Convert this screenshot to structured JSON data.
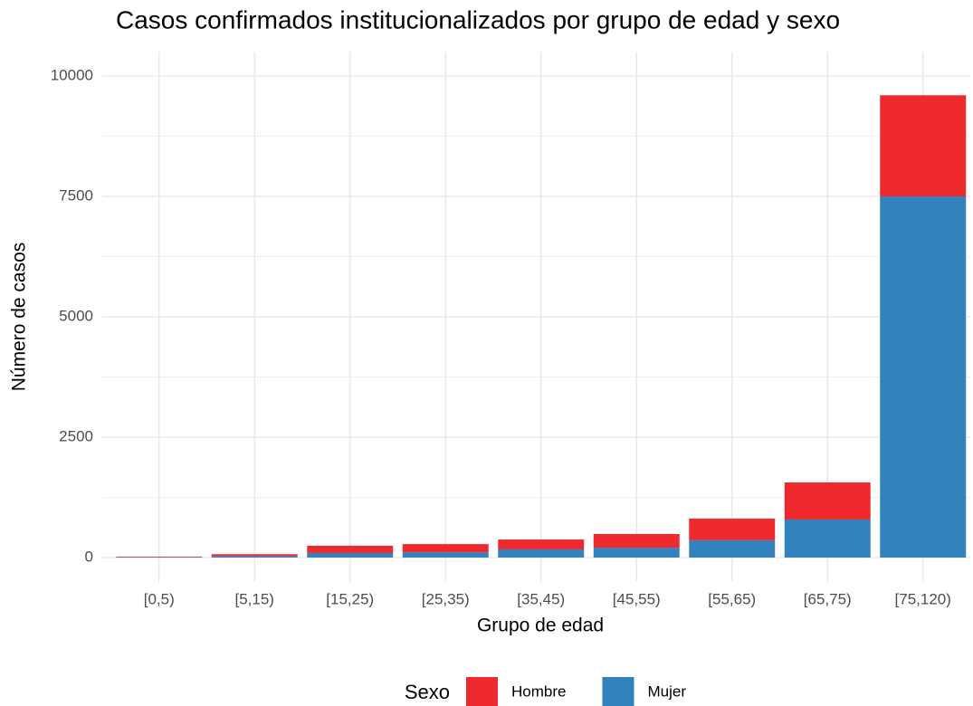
{
  "chart_data": {
    "type": "stacked_bar",
    "title": "Casos confirmados institucionalizados por grupo de edad y sexo",
    "x_label": "Grupo de edad",
    "y_label": "Número de casos",
    "categories": [
      "[0,5)",
      "[5,15)",
      "[15,25)",
      "[25,35)",
      "[35,45)",
      "[45,55)",
      "[55,65)",
      "[65,75)",
      "[75,120)"
    ],
    "series": [
      {
        "name": "Hombre",
        "color": "#EE2A2E",
        "values": [
          12,
          40,
          150,
          170,
          205,
          285,
          450,
          770,
          2100
        ]
      },
      {
        "name": "Mujer",
        "color": "#3282BD",
        "values": [
          8,
          30,
          95,
          110,
          170,
          205,
          360,
          790,
          7500
        ]
      }
    ],
    "legend_title": "Sexo",
    "legend": "bottom",
    "ylim": [
      -500,
      10500
    ],
    "yticks": [
      0,
      2500,
      5000,
      7500,
      10000
    ],
    "grid": true
  }
}
